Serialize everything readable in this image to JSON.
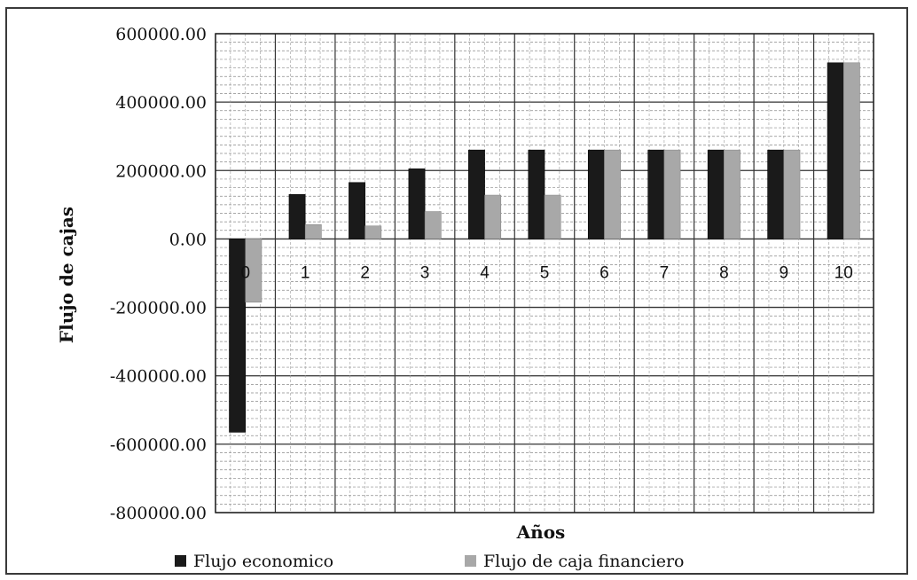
{
  "chart_data": {
    "type": "bar",
    "title": "",
    "xlabel": "Años",
    "ylabel": "Flujo de cajas",
    "categories": [
      "0",
      "1",
      "2",
      "3",
      "4",
      "5",
      "6",
      "7",
      "8",
      "9",
      "10"
    ],
    "series": [
      {
        "name": "Flujo economico",
        "color": "#1a1a1a",
        "values": [
          -565000,
          130000,
          165000,
          205000,
          260000,
          260000,
          260000,
          260000,
          260000,
          260000,
          515000
        ]
      },
      {
        "name": "Flujo de caja financiero",
        "color": "#a8a8a8",
        "values": [
          -185000,
          42000,
          38000,
          80000,
          128000,
          128000,
          260000,
          260000,
          260000,
          260000,
          515000
        ]
      }
    ],
    "ylim": [
      -800000,
      600000
    ],
    "yticks": [
      "600000.00",
      "400000.00",
      "200000.00",
      "0.00",
      "-200000.00",
      "-400000.00",
      "-600000.00",
      "-800000.00"
    ],
    "grid": true,
    "legend": "bottom"
  }
}
